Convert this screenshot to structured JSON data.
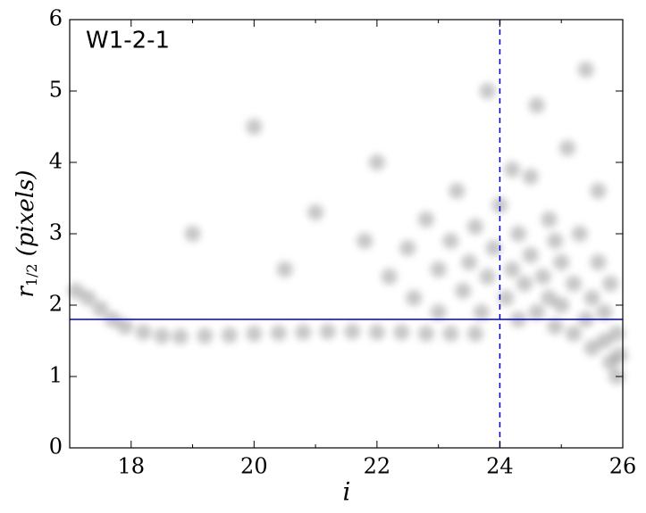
{
  "chart_data": {
    "type": "scatter",
    "annotation": "W1-2-1",
    "xlabel": "i",
    "ylabel": {
      "main": "r",
      "subscript": "1/2",
      "rest": "(pixels)"
    },
    "xlim": [
      17,
      26
    ],
    "ylim": [
      0,
      6
    ],
    "xticks": [
      18,
      20,
      22,
      24,
      26
    ],
    "xminorticks": [
      17,
      19,
      21,
      23,
      25
    ],
    "yticks": [
      0,
      1,
      2,
      3,
      4,
      5,
      6
    ],
    "color": "#000000",
    "hline": {
      "y": 1.8,
      "color": "#0000cc"
    },
    "vline": {
      "x": 24,
      "color": "#0000cc",
      "dashed": true
    },
    "x": [
      17.1,
      17.3,
      17.5,
      17.7,
      17.9,
      18.2,
      18.5,
      18.8,
      19.2,
      19.6,
      20.0,
      20.4,
      20.8,
      21.2,
      21.6,
      22.0,
      22.4,
      22.8,
      23.2,
      23.6,
      22.2,
      22.5,
      22.6,
      22.8,
      23.0,
      23.0,
      23.2,
      23.3,
      23.4,
      23.5,
      23.6,
      23.7,
      23.8,
      23.9,
      24.0,
      24.1,
      24.2,
      24.3,
      24.3,
      24.4,
      24.5,
      24.5,
      24.6,
      24.7,
      24.8,
      24.8,
      24.9,
      25.0,
      25.0,
      25.1,
      25.2,
      25.2,
      25.3,
      25.4,
      25.5,
      25.5,
      25.6,
      25.7,
      25.7,
      25.8,
      25.8,
      25.9,
      25.9,
      25.95,
      24.6,
      25.4,
      23.8,
      22.0,
      21.0,
      20.0,
      19.0,
      20.5,
      21.8,
      25.6,
      24.9,
      24.2
    ],
    "y": [
      2.2,
      2.1,
      1.95,
      1.8,
      1.7,
      1.62,
      1.57,
      1.56,
      1.57,
      1.58,
      1.6,
      1.61,
      1.62,
      1.63,
      1.63,
      1.62,
      1.62,
      1.6,
      1.6,
      1.6,
      2.4,
      2.8,
      2.1,
      3.2,
      2.5,
      1.9,
      2.9,
      3.6,
      2.2,
      2.6,
      3.1,
      1.9,
      2.4,
      2.8,
      3.4,
      2.1,
      2.5,
      1.8,
      3.0,
      2.3,
      3.8,
      2.7,
      1.9,
      2.4,
      2.1,
      3.2,
      1.7,
      2.6,
      2.0,
      4.2,
      1.6,
      2.3,
      3.0,
      1.8,
      2.1,
      1.4,
      2.6,
      1.5,
      1.9,
      1.2,
      2.3,
      1.6,
      1.0,
      1.3,
      4.8,
      5.3,
      5.0,
      4.0,
      3.3,
      4.5,
      3.0,
      2.5,
      2.9,
      3.6,
      2.9,
      3.9
    ]
  }
}
